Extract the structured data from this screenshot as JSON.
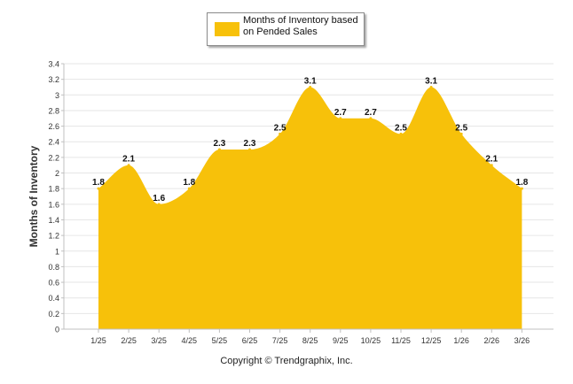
{
  "chart_data": {
    "type": "area",
    "title": "",
    "legend": {
      "label": "Months of Inventory based on Pended Sales",
      "placement": "top-center"
    },
    "ylabel": "Months of Inventory",
    "xlabel": "",
    "ylim": [
      0,
      3.4
    ],
    "yticks": [
      0,
      0.2,
      0.4,
      0.6,
      0.8,
      1,
      1.2,
      1.4,
      1.6,
      1.8,
      2,
      2.2,
      2.4,
      2.6,
      2.8,
      3,
      3.2,
      3.4
    ],
    "grid": true,
    "categories": [
      "1/25",
      "2/25",
      "3/25",
      "4/25",
      "5/25",
      "6/25",
      "7/25",
      "8/25",
      "9/25",
      "10/25",
      "11/25",
      "12/25",
      "1/26",
      "2/26",
      "3/26"
    ],
    "series": [
      {
        "name": "Months of Inventory based on Pended Sales",
        "values": [
          1.8,
          2.1,
          1.6,
          1.8,
          2.3,
          2.3,
          2.5,
          3.1,
          2.7,
          2.7,
          2.5,
          3.1,
          2.5,
          2.1,
          1.8
        ]
      }
    ],
    "data_labels": [
      "1.8",
      "2.1",
      "1.6",
      "1.8",
      "2.3",
      "2.3",
      "2.5",
      "3.1",
      "2.7",
      "2.7",
      "2.5",
      "3.1",
      "2.5",
      "2.1",
      "1.8"
    ],
    "colors": {
      "fill": "#F7C10A",
      "grid": "#E6E6E6",
      "axis": "#C0C0C0"
    }
  },
  "footer": {
    "copyright": "Copyright © Trendgraphix, Inc."
  }
}
